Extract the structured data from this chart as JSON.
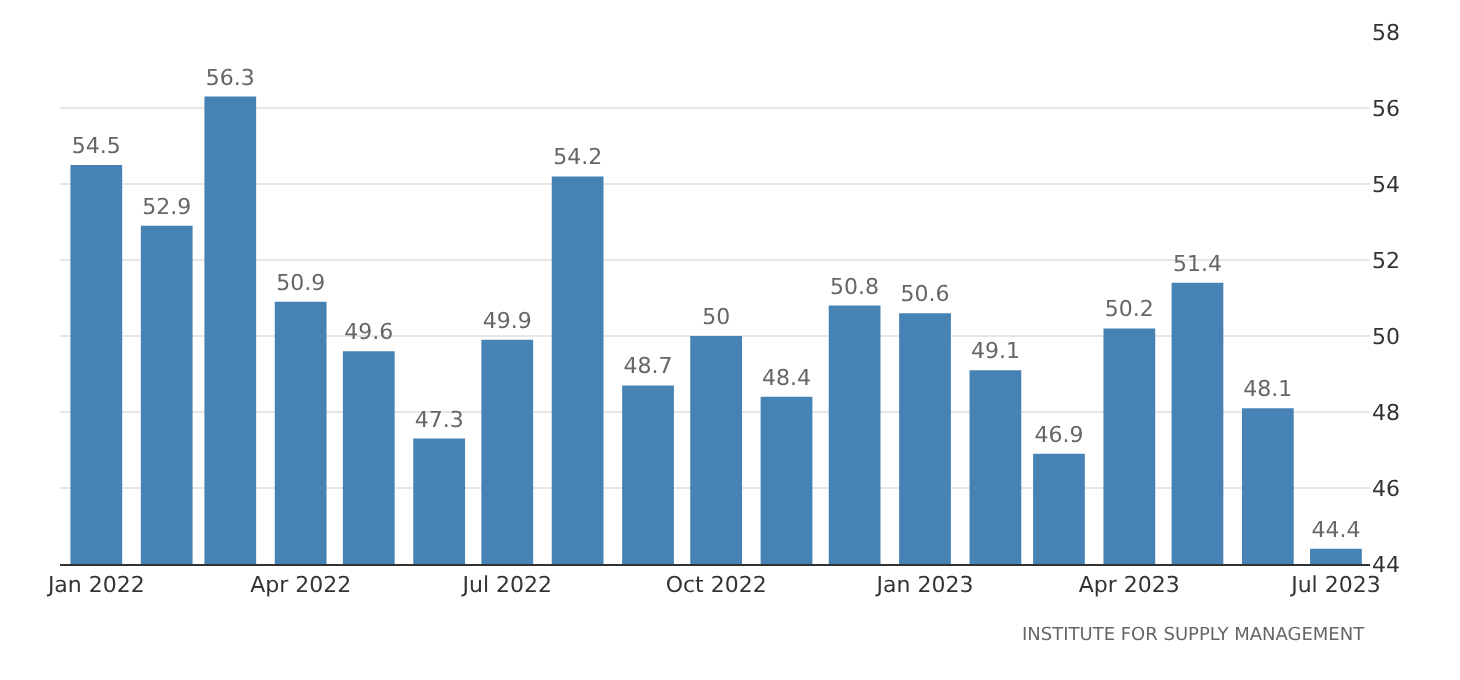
{
  "chart_data": {
    "type": "bar",
    "x": [
      "2022-01",
      "2022-02",
      "2022-03",
      "2022-04",
      "2022-05",
      "2022-06",
      "2022-07",
      "2022-08",
      "2022-09",
      "2022-10",
      "2022-11",
      "2022-12",
      "2023-01",
      "2023-02",
      "2023-03",
      "2023-04",
      "2023-05",
      "2023-06",
      "2023-07"
    ],
    "values": [
      54.5,
      52.9,
      56.3,
      50.9,
      49.6,
      47.3,
      49.9,
      54.2,
      48.7,
      50,
      48.4,
      50.8,
      50.6,
      49.1,
      46.9,
      50.2,
      51.4,
      48.1,
      44.4
    ],
    "color": "#4682b4",
    "data_labels": true,
    "grid": "y",
    "ylim": [
      44,
      58
    ],
    "yticks": [
      44,
      46,
      48,
      50,
      52,
      54,
      56,
      58
    ],
    "xlim": [
      "2021-12-16",
      "2023-07-16"
    ],
    "xticks": [
      {
        "value": "2022-01",
        "label": "Jan 2022"
      },
      {
        "value": "2022-04",
        "label": "Apr 2022"
      },
      {
        "value": "2022-07",
        "label": "Jul 2022"
      },
      {
        "value": "2022-10",
        "label": "Oct 2022"
      },
      {
        "value": "2023-01",
        "label": "Jan 2023"
      },
      {
        "value": "2023-04",
        "label": "Apr 2023"
      },
      {
        "value": "2023-07",
        "label": "Jul 2023"
      }
    ],
    "annotations": [
      "INSTITUTE FOR SUPPLY MANAGEMENT"
    ]
  }
}
